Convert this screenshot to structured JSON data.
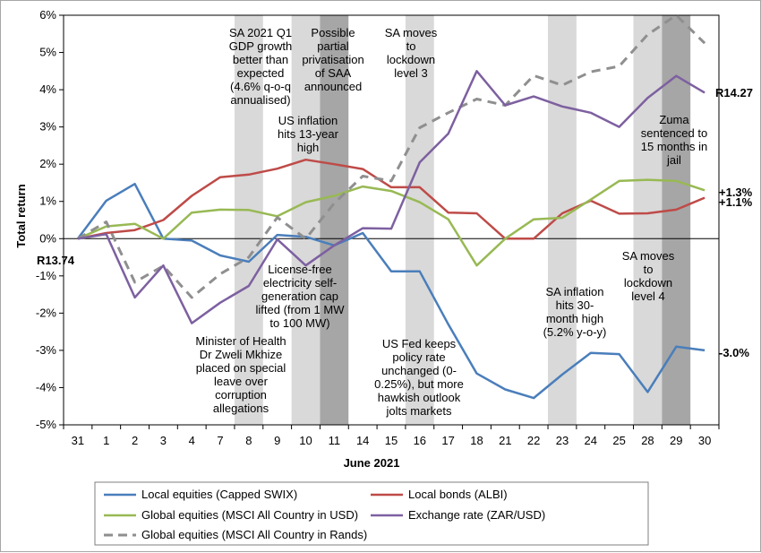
{
  "chart_data": {
    "type": "line",
    "xlabel": "June 2021",
    "ylabel": "Total return",
    "categories": [
      "31",
      "1",
      "2",
      "3",
      "4",
      "7",
      "8",
      "9",
      "10",
      "11",
      "14",
      "15",
      "16",
      "17",
      "18",
      "21",
      "22",
      "23",
      "24",
      "25",
      "28",
      "29",
      "30"
    ],
    "ylim": [
      -5,
      6
    ],
    "yticks": [
      -5,
      -4,
      -3,
      -2,
      -1,
      0,
      1,
      2,
      3,
      4,
      5,
      6
    ],
    "ytick_labels": [
      "-5%",
      "-4%",
      "-3%",
      "-2%",
      "-1%",
      "0%",
      "1%",
      "2%",
      "3%",
      "4%",
      "5%",
      "6%"
    ],
    "grid": false,
    "legend_position": "bottom",
    "shaded_days": [
      {
        "from": 6,
        "to": 7,
        "color": "#d9d9d9"
      },
      {
        "from": 8,
        "to": 9,
        "color": "#d9d9d9"
      },
      {
        "from": 9,
        "to": 10,
        "color": "#a6a6a6"
      },
      {
        "from": 12,
        "to": 13,
        "color": "#d9d9d9"
      },
      {
        "from": 17,
        "to": 18,
        "color": "#d9d9d9"
      },
      {
        "from": 20,
        "to": 21,
        "color": "#d9d9d9"
      },
      {
        "from": 21,
        "to": 22,
        "color": "#a6a6a6"
      }
    ],
    "series": [
      {
        "name": "Local equities (Capped SWIX)",
        "color": "#4a7ebb",
        "dash": false,
        "values": [
          0.0,
          1.02,
          1.47,
          0.0,
          -0.05,
          -0.45,
          -0.62,
          0.1,
          0.05,
          -0.18,
          0.15,
          -0.88,
          -0.88,
          -2.3,
          -3.62,
          -4.05,
          -4.28,
          -3.65,
          -3.07,
          -3.1,
          -4.12,
          -2.9,
          -3.0
        ]
      },
      {
        "name": "Local bonds (ALBI)",
        "color": "#be4b48",
        "dash": false,
        "values": [
          0.0,
          0.15,
          0.23,
          0.5,
          1.15,
          1.65,
          1.72,
          1.88,
          2.12,
          2.0,
          1.87,
          1.38,
          1.38,
          0.7,
          0.68,
          0.0,
          0.0,
          0.68,
          1.02,
          0.67,
          0.68,
          0.78,
          1.1
        ]
      },
      {
        "name": "Global equities (MSCI All Country in USD)",
        "color": "#98b954",
        "dash": false,
        "values": [
          0.0,
          0.33,
          0.4,
          0.0,
          0.7,
          0.78,
          0.77,
          0.6,
          0.98,
          1.15,
          1.4,
          1.28,
          0.98,
          0.52,
          -0.72,
          0.0,
          0.52,
          0.56,
          1.05,
          1.55,
          1.58,
          1.55,
          1.3
        ]
      },
      {
        "name": "Exchange rate (ZAR/USD)",
        "color": "#7d60a0",
        "dash": false,
        "values": [
          0.0,
          0.12,
          -1.58,
          -0.72,
          -2.27,
          -1.72,
          -1.27,
          -0.02,
          -0.72,
          -0.18,
          0.28,
          0.27,
          2.05,
          2.82,
          4.5,
          3.58,
          3.82,
          3.55,
          3.38,
          3.0,
          3.78,
          4.37,
          3.92
        ]
      },
      {
        "name": "Global equities (MSCI All Country in Rands)",
        "color": "#8f8f8f",
        "dash": true,
        "values": [
          0.0,
          0.45,
          -1.17,
          -0.73,
          -1.58,
          -0.95,
          -0.5,
          0.57,
          0.0,
          0.95,
          1.68,
          1.55,
          2.98,
          3.38,
          3.75,
          3.58,
          4.38,
          4.12,
          4.48,
          4.63,
          5.48,
          6.0,
          5.25
        ]
      }
    ],
    "end_labels": [
      {
        "text": "R14.27",
        "series": 3
      },
      {
        "text": "+1.3%",
        "series": 2
      },
      {
        "text": "+1.1%",
        "series": 1
      },
      {
        "text": "-3.0%",
        "series": 0
      },
      {
        "text": "R13.74",
        "series": 3
      }
    ],
    "annotations": [
      {
        "lines": [
          "SA 2021 Q1",
          "GDP growth",
          "better than",
          "expected",
          "(4.6% q-o-q",
          "annualised)"
        ]
      },
      {
        "lines": [
          "Possible",
          "partial",
          "privatisation",
          "of SAA",
          "announced"
        ]
      },
      {
        "lines": [
          "SA moves",
          "to",
          "lockdown",
          "level 3"
        ]
      },
      {
        "lines": [
          "US inflation",
          "hits 13-year",
          "high"
        ]
      },
      {
        "lines": [
          "Zuma",
          "sentenced to",
          "15 months in",
          "jail"
        ]
      },
      {
        "lines": [
          "License-free",
          "electricity self-",
          "generation cap",
          "lifted (from 1 MW",
          "to 100 MW)"
        ]
      },
      {
        "lines": [
          "Minister of Health",
          "Dr Zweli Mkhize",
          "placed on special",
          "leave over",
          "corruption",
          "allegations"
        ]
      },
      {
        "lines": [
          "US Fed keeps",
          "policy rate",
          "unchanged (0-",
          "0.25%), but more",
          "hawkish outlook",
          "jolts markets"
        ]
      },
      {
        "lines": [
          "SA inflation",
          "hits 30-",
          "month high",
          "(5.2% y-o-y)"
        ]
      },
      {
        "lines": [
          "SA moves",
          "to",
          "lockdown",
          "level 4"
        ]
      }
    ]
  }
}
